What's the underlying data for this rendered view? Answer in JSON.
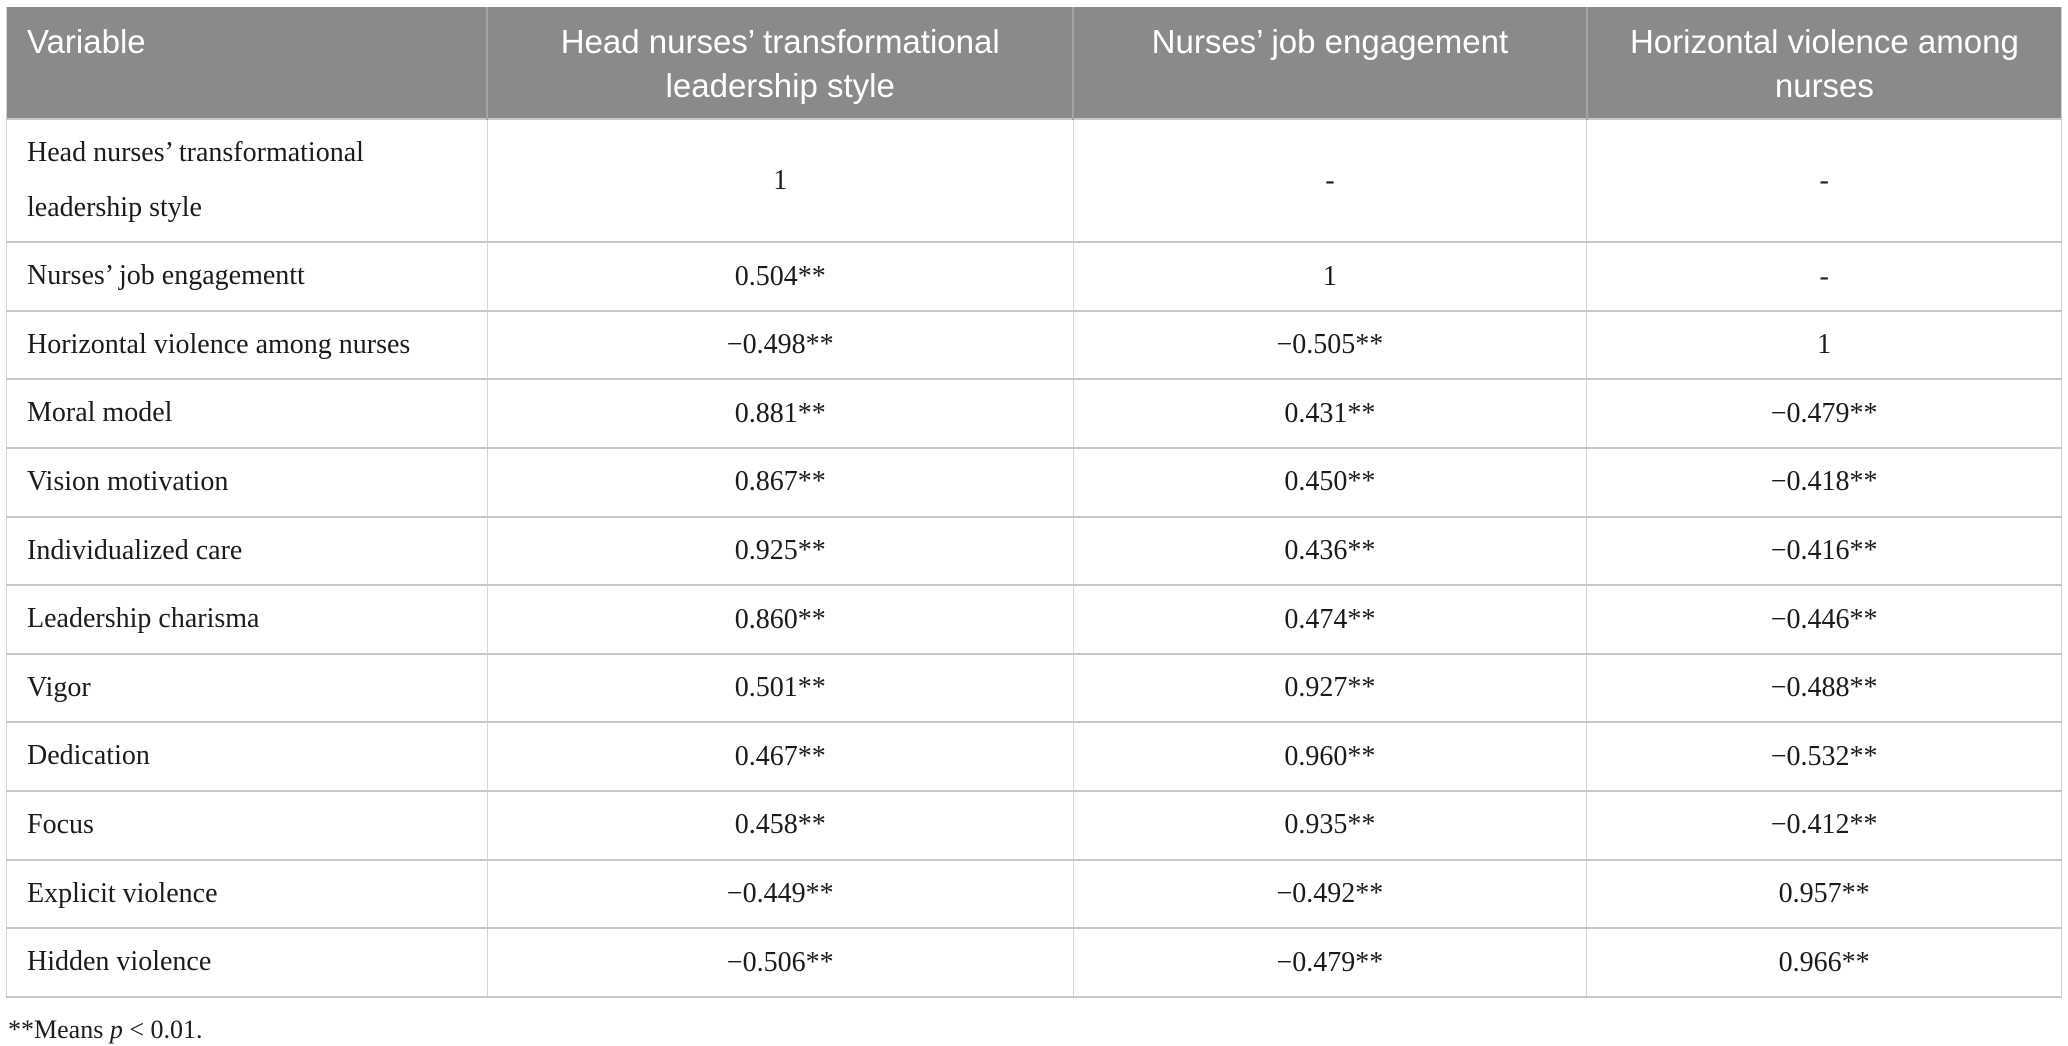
{
  "colors": {
    "header_bg": "#8a8a8a",
    "header_text": "#ffffff",
    "header_separator": "#a4a4a4",
    "row_line": "#c8c8c8",
    "column_line": "#d4d4d4",
    "body_text": "#1b1b1b"
  },
  "table": {
    "columns": [
      "Variable",
      "Head nurses’ transformational leadership style",
      "Nurses’ job engagement",
      "Horizontal violence among nurses"
    ],
    "rows": [
      {
        "variable": "Head nurses’ transformational leadership style",
        "values": [
          "1",
          "-",
          "-"
        ]
      },
      {
        "variable": "Nurses’ job engagementt",
        "values": [
          "0.504**",
          "1",
          "-"
        ]
      },
      {
        "variable": "Horizontal violence among nurses",
        "values": [
          "−0.498**",
          "−0.505**",
          "1"
        ]
      },
      {
        "variable": "Moral model",
        "values": [
          "0.881**",
          "0.431**",
          "−0.479**"
        ]
      },
      {
        "variable": "Vision motivation",
        "values": [
          "0.867**",
          "0.450**",
          "−0.418**"
        ]
      },
      {
        "variable": "Individualized care",
        "values": [
          "0.925**",
          "0.436**",
          "−0.416**"
        ]
      },
      {
        "variable": "Leadership charisma",
        "values": [
          "0.860**",
          "0.474**",
          "−0.446**"
        ]
      },
      {
        "variable": "Vigor",
        "values": [
          "0.501**",
          "0.927**",
          "−0.488**"
        ]
      },
      {
        "variable": "Dedication",
        "values": [
          "0.467**",
          "0.960**",
          "−0.532**"
        ]
      },
      {
        "variable": "Focus",
        "values": [
          "0.458**",
          "0.935**",
          "−0.412**"
        ]
      },
      {
        "variable": "Explicit violence",
        "values": [
          "−0.449**",
          "−0.492**",
          "0.957**"
        ]
      },
      {
        "variable": "Hidden violence",
        "values": [
          "−0.506**",
          "−0.479**",
          "0.966**"
        ]
      }
    ]
  },
  "footnote": {
    "prefix": "**Means ",
    "italic_symbol": "p",
    "suffix": " < 0.01."
  }
}
